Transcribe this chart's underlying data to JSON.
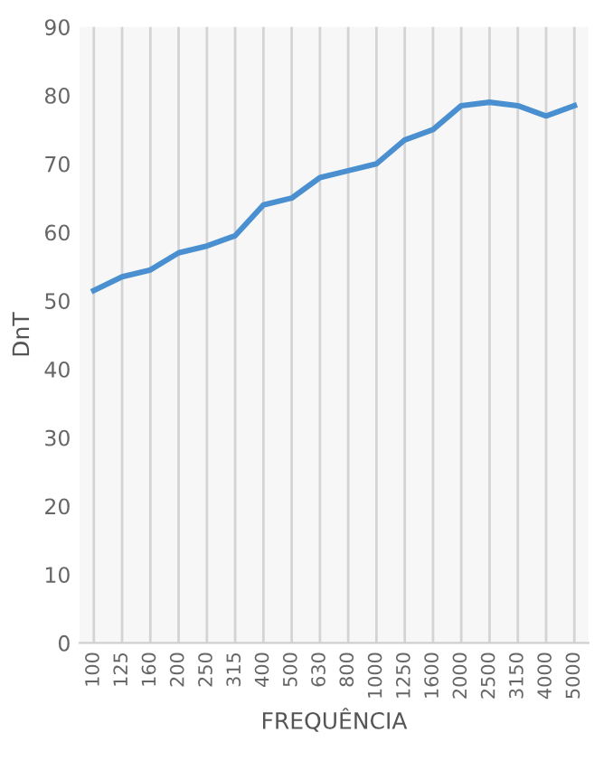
{
  "chart_data": {
    "type": "line",
    "xlabel": "FREQUÊNCIA",
    "ylabel": "DnT",
    "categories": [
      "100",
      "125",
      "160",
      "200",
      "250",
      "315",
      "400",
      "500",
      "630",
      "800",
      "1000",
      "1250",
      "1600",
      "2000",
      "2500",
      "3150",
      "4000",
      "5000"
    ],
    "series": [
      {
        "color": "#4a90d0",
        "values": [
          51.5,
          53.5,
          54.5,
          57,
          58,
          59.5,
          64,
          65,
          68,
          69,
          70,
          73.5,
          75,
          78.5,
          79,
          78.5,
          77,
          78.5
        ]
      }
    ],
    "ylim": [
      0,
      90
    ],
    "yticks": [
      0,
      10,
      20,
      30,
      40,
      50,
      60,
      70,
      80,
      90
    ],
    "grid": "x",
    "marker": "none",
    "line_style": "solid"
  }
}
